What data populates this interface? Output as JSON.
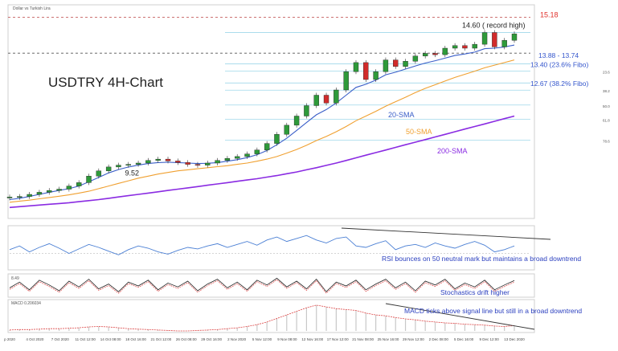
{
  "header": {
    "instrument": "Dollar vs Turkish Lira"
  },
  "chart_data": {
    "type": "line",
    "title": "USDTRY 4H-Chart",
    "price_levels": [
      {
        "label": "15.18",
        "value": 15.18,
        "color": "#e0302a"
      },
      {
        "label": "14.60 ( record high)",
        "value": 14.6,
        "color": "#222222"
      },
      {
        "label": "13.88 - 13.74",
        "value": 13.81,
        "color": "#3355cc"
      },
      {
        "label": "13.40 (23.6% Fibo)",
        "value": 13.4,
        "color": "#3355cc"
      },
      {
        "label": "12.67 (38.2% Fibo)",
        "value": 12.67,
        "color": "#3355cc"
      }
    ],
    "low_label": {
      "label": "9.52",
      "value": 9.52
    },
    "fib_small_labels": [
      "23.6",
      "38.2",
      "50.0",
      "61.8",
      "78.6"
    ],
    "series": [
      {
        "name": "20-SMA",
        "color": "#3a5ec8"
      },
      {
        "name": "50-SMA",
        "color": "#f0a030"
      },
      {
        "name": "200-SMA",
        "color": "#8a2be2"
      }
    ],
    "price": [
      8.3,
      8.32,
      8.4,
      8.48,
      8.55,
      8.6,
      8.72,
      8.85,
      9.1,
      9.3,
      9.45,
      9.52,
      9.55,
      9.6,
      9.7,
      9.75,
      9.68,
      9.62,
      9.55,
      9.52,
      9.6,
      9.7,
      9.78,
      9.85,
      9.95,
      10.1,
      10.35,
      10.7,
      11.05,
      11.4,
      11.8,
      12.2,
      11.9,
      12.4,
      13.1,
      13.45,
      12.8,
      13.1,
      13.55,
      13.3,
      13.5,
      13.7,
      13.8,
      13.75,
      14.0,
      14.1,
      14.0,
      14.15,
      14.6,
      14.05,
      14.3,
      14.55
    ],
    "sma20": [
      8.2,
      8.25,
      8.32,
      8.4,
      8.48,
      8.55,
      8.62,
      8.72,
      8.88,
      9.05,
      9.22,
      9.35,
      9.45,
      9.52,
      9.58,
      9.62,
      9.63,
      9.62,
      9.6,
      9.58,
      9.59,
      9.62,
      9.67,
      9.73,
      9.81,
      9.92,
      10.08,
      10.3,
      10.55,
      10.85,
      11.15,
      11.45,
      11.65,
      11.9,
      12.2,
      12.5,
      12.62,
      12.78,
      12.98,
      13.08,
      13.2,
      13.32,
      13.43,
      13.52,
      13.62,
      13.72,
      13.78,
      13.85,
      13.98,
      14.0,
      14.05,
      14.12
    ],
    "sma50": [
      8.1,
      8.14,
      8.18,
      8.23,
      8.28,
      8.33,
      8.38,
      8.45,
      8.52,
      8.62,
      8.72,
      8.82,
      8.92,
      9.02,
      9.1,
      9.18,
      9.24,
      9.3,
      9.34,
      9.38,
      9.42,
      9.46,
      9.5,
      9.55,
      9.6,
      9.67,
      9.75,
      9.85,
      9.98,
      10.12,
      10.28,
      10.46,
      10.62,
      10.8,
      11.0,
      11.22,
      11.4,
      11.58,
      11.78,
      11.95,
      12.12,
      12.3,
      12.46,
      12.6,
      12.74,
      12.88,
      13.0,
      13.12,
      13.25,
      13.35,
      13.45,
      13.55
    ],
    "sma200": [
      7.9,
      7.93,
      7.96,
      7.99,
      8.02,
      8.05,
      8.08,
      8.12,
      8.16,
      8.2,
      8.25,
      8.3,
      8.35,
      8.4,
      8.45,
      8.5,
      8.55,
      8.6,
      8.65,
      8.7,
      8.75,
      8.8,
      8.85,
      8.9,
      8.95,
      9.0,
      9.06,
      9.12,
      9.19,
      9.26,
      9.34,
      9.42,
      9.51,
      9.6,
      9.7,
      9.8,
      9.9,
      10.0,
      10.1,
      10.2,
      10.3,
      10.4,
      10.5,
      10.6,
      10.7,
      10.8,
      10.9,
      11.0,
      11.1,
      11.2,
      11.3,
      11.4
    ],
    "ylim": [
      7.6,
      15.6
    ],
    "x_ticks": [
      "p 2020",
      "4 Oct 2020",
      "7 Oct 2020",
      "11 Oct 12:00",
      "14 Oct 08:00",
      "18 Oct 16:00",
      "21 Oct 12:00",
      "26 Oct 08:00",
      "29 Oct 16:00",
      "2 Nov 2020",
      "5 Nov 12:00",
      "9 Nov 08:00",
      "12 Nov 16:00",
      "17 Nov 12:00",
      "21 Nov 08:00",
      "25 Nov 16:00",
      "29 Nov 12:00",
      "2 Dec 08:00",
      "5 Dec 16:00",
      "9 Dec 12:00",
      "13 Dec 2020"
    ],
    "rsi": {
      "annotation": "RSI bounces on 50 neutral mark but maintains a broad downtrend",
      "values": [
        55,
        60,
        52,
        58,
        63,
        57,
        50,
        56,
        62,
        58,
        53,
        48,
        55,
        60,
        57,
        52,
        49,
        54,
        58,
        56,
        60,
        63,
        58,
        62,
        66,
        61,
        68,
        72,
        66,
        70,
        74,
        68,
        64,
        70,
        72,
        60,
        58,
        63,
        67,
        55,
        60,
        62,
        58,
        64,
        60,
        57,
        62,
        66,
        61,
        52,
        55,
        60
      ]
    },
    "stochastics": {
      "label": "8.49",
      "annotation": "Stochastics drift higher",
      "values": [
        40,
        70,
        30,
        80,
        55,
        25,
        75,
        45,
        85,
        35,
        60,
        20,
        70,
        50,
        80,
        30,
        65,
        45,
        75,
        25,
        60,
        85,
        40,
        70,
        30,
        80,
        55,
        90,
        45,
        75,
        35,
        85,
        20,
        70,
        50,
        80,
        30,
        60,
        85,
        40,
        70,
        25,
        75,
        55,
        85,
        35,
        65,
        45,
        80,
        30,
        55,
        78
      ]
    },
    "macd": {
      "label": "MACD 0.206034",
      "annotation": "MACD ticks above signal line but still in a broad downtrend",
      "values": [
        0.02,
        0.03,
        0.03,
        0.04,
        0.05,
        0.05,
        0.06,
        0.07,
        0.09,
        0.1,
        0.09,
        0.07,
        0.05,
        0.04,
        0.03,
        0.02,
        0.01,
        0.0,
        0.0,
        0.01,
        0.02,
        0.03,
        0.05,
        0.07,
        0.1,
        0.14,
        0.2,
        0.28,
        0.36,
        0.44,
        0.52,
        0.58,
        0.54,
        0.5,
        0.48,
        0.46,
        0.4,
        0.36,
        0.34,
        0.3,
        0.27,
        0.25,
        0.22,
        0.2,
        0.18,
        0.17,
        0.15,
        0.14,
        0.13,
        0.11,
        0.1,
        0.12
      ]
    }
  }
}
